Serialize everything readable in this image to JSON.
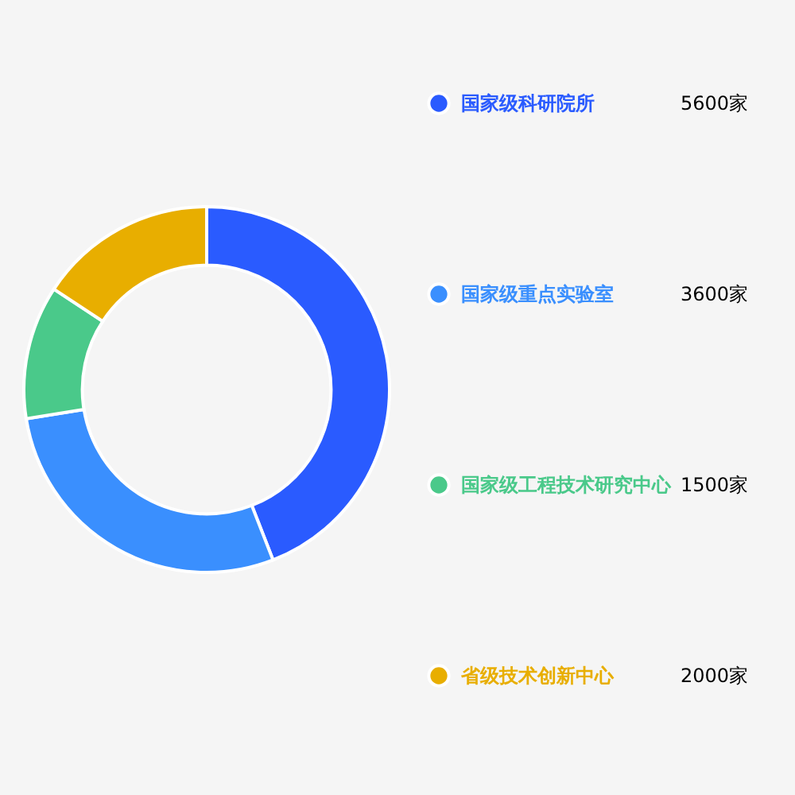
{
  "chart_data": {
    "type": "donut",
    "categories": [
      "国家级科研院所",
      "国家级重点实验室",
      "国家级工程技术研究中心",
      "省级技术创新中心"
    ],
    "values": [
      5600,
      3600,
      1500,
      2000
    ],
    "value_labels": [
      "5600家",
      "3600家",
      "1500家",
      "2000家"
    ],
    "colors": [
      "#2a5bff",
      "#3a8ffe",
      "#4ac98a",
      "#e8ae00"
    ],
    "legend": "right"
  }
}
